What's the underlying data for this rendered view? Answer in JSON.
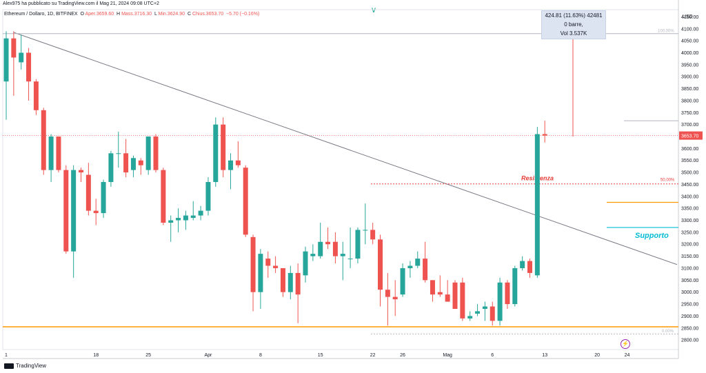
{
  "header": {
    "published": "Alex975 ha pubblicato su TradingView.com il Mag 21, 2024 09:08 UTC+2"
  },
  "legend": {
    "symbol": "Ethereum / Dollaro, 1D, BITFINEX",
    "o_label": "O",
    "open": "Aper.3659.60",
    "h_label": "H",
    "high": "Mass.3716.30",
    "l_label": "L",
    "low": "Min.3624.90",
    "c_label": "C",
    "close": "Chius.3653.70",
    "change": "−5.70 (−0.16%)"
  },
  "top_marker": "V",
  "currency": "USD",
  "measure": {
    "line1": "424.81 (11.63%) 42481",
    "line2": "0 barre,",
    "line3": "Vol 3.537K"
  },
  "annotations": {
    "resistance": "Resistenza",
    "support": "Supporto",
    "fib_100": "100.00%",
    "fib_50": "50.00%",
    "fib_0": "0.00%"
  },
  "price_badge": "3653.70",
  "brand": "TradingView",
  "colors": {
    "up": "#26a69a",
    "down": "#ef5350",
    "orange": "#ff9800",
    "trend": "#787b86",
    "resistance": "#e53935",
    "support": "#00bcd4",
    "measure_arrow": "#ef5350"
  },
  "chart_data": {
    "type": "candlestick",
    "y_axis_ticks": [
      4150,
      4100,
      4050,
      4000,
      3950,
      3900,
      3850,
      3800,
      3750,
      3700,
      3650,
      3600,
      3550,
      3500,
      3450,
      3400,
      3350,
      3300,
      3250,
      3200,
      3150,
      3100,
      3050,
      3000,
      2950,
      2900,
      2850,
      2800
    ],
    "ylim": [
      2760,
      4180
    ],
    "x_axis_ticks": [
      "1",
      "18",
      "25",
      "Apr",
      "8",
      "15",
      "22",
      "26",
      "Mag",
      "6",
      "13",
      "20",
      "24"
    ],
    "candles": [
      {
        "o": 3880,
        "h": 4090,
        "l": 3720,
        "c": 4060
      },
      {
        "o": 4060,
        "h": 4090,
        "l": 3820,
        "c": 3980
      },
      {
        "o": 3960,
        "h": 4075,
        "l": 3930,
        "c": 4000
      },
      {
        "o": 4000,
        "h": 4020,
        "l": 3800,
        "c": 3880
      },
      {
        "o": 3880,
        "h": 3890,
        "l": 3740,
        "c": 3760
      },
      {
        "o": 3760,
        "h": 3770,
        "l": 3490,
        "c": 3510
      },
      {
        "o": 3510,
        "h": 3660,
        "l": 3460,
        "c": 3650
      },
      {
        "o": 3650,
        "h": 3650,
        "l": 3500,
        "c": 3510
      },
      {
        "o": 3510,
        "h": 3530,
        "l": 3160,
        "c": 3170
      },
      {
        "o": 3170,
        "h": 3530,
        "l": 3060,
        "c": 3510
      },
      {
        "o": 3510,
        "h": 3520,
        "l": 3460,
        "c": 3500
      },
      {
        "o": 3490,
        "h": 3540,
        "l": 3320,
        "c": 3340
      },
      {
        "o": 3340,
        "h": 3390,
        "l": 3280,
        "c": 3330
      },
      {
        "o": 3330,
        "h": 3470,
        "l": 3310,
        "c": 3460
      },
      {
        "o": 3460,
        "h": 3590,
        "l": 3440,
        "c": 3580
      },
      {
        "o": 3580,
        "h": 3670,
        "l": 3520,
        "c": 3580
      },
      {
        "o": 3580,
        "h": 3640,
        "l": 3480,
        "c": 3500
      },
      {
        "o": 3510,
        "h": 3570,
        "l": 3480,
        "c": 3560
      },
      {
        "o": 3550,
        "h": 3560,
        "l": 3490,
        "c": 3530
      },
      {
        "o": 3510,
        "h": 3650,
        "l": 3490,
        "c": 3650
      },
      {
        "o": 3650,
        "h": 3660,
        "l": 3500,
        "c": 3510
      },
      {
        "o": 3510,
        "h": 3520,
        "l": 3280,
        "c": 3290
      },
      {
        "o": 3290,
        "h": 3320,
        "l": 3210,
        "c": 3300
      },
      {
        "o": 3300,
        "h": 3350,
        "l": 3250,
        "c": 3310
      },
      {
        "o": 3300,
        "h": 3340,
        "l": 3260,
        "c": 3320
      },
      {
        "o": 3310,
        "h": 3380,
        "l": 3300,
        "c": 3320
      },
      {
        "o": 3320,
        "h": 3360,
        "l": 3300,
        "c": 3340
      },
      {
        "o": 3340,
        "h": 3480,
        "l": 3320,
        "c": 3460
      },
      {
        "o": 3460,
        "h": 3730,
        "l": 3440,
        "c": 3700
      },
      {
        "o": 3700,
        "h": 3730,
        "l": 3480,
        "c": 3510
      },
      {
        "o": 3510,
        "h": 3580,
        "l": 3430,
        "c": 3550
      },
      {
        "o": 3550,
        "h": 3630,
        "l": 3520,
        "c": 3530
      },
      {
        "o": 3520,
        "h": 3530,
        "l": 3230,
        "c": 3240
      },
      {
        "o": 3230,
        "h": 3240,
        "l": 2920,
        "c": 3000
      },
      {
        "o": 3000,
        "h": 3180,
        "l": 2930,
        "c": 3160
      },
      {
        "o": 3140,
        "h": 3170,
        "l": 3060,
        "c": 3110
      },
      {
        "o": 3110,
        "h": 3150,
        "l": 3080,
        "c": 3100
      },
      {
        "o": 3100,
        "h": 3100,
        "l": 2980,
        "c": 3000
      },
      {
        "o": 3000,
        "h": 3110,
        "l": 2970,
        "c": 3080
      },
      {
        "o": 3080,
        "h": 3120,
        "l": 2870,
        "c": 2990
      },
      {
        "o": 3070,
        "h": 3190,
        "l": 3040,
        "c": 3170
      },
      {
        "o": 3150,
        "h": 3200,
        "l": 3130,
        "c": 3160
      },
      {
        "o": 3150,
        "h": 3290,
        "l": 3140,
        "c": 3210
      },
      {
        "o": 3210,
        "h": 3270,
        "l": 3180,
        "c": 3200
      },
      {
        "o": 3210,
        "h": 3250,
        "l": 3120,
        "c": 3150
      },
      {
        "o": 3150,
        "h": 3210,
        "l": 3050,
        "c": 3160
      },
      {
        "o": 3140,
        "h": 3270,
        "l": 3100,
        "c": 3140
      },
      {
        "o": 3140,
        "h": 3270,
        "l": 3120,
        "c": 3260
      },
      {
        "o": 3260,
        "h": 3370,
        "l": 3200,
        "c": 3260
      },
      {
        "o": 3260,
        "h": 3290,
        "l": 3200,
        "c": 3220
      },
      {
        "o": 3220,
        "h": 3240,
        "l": 2940,
        "c": 3010
      },
      {
        "o": 3010,
        "h": 3080,
        "l": 2860,
        "c": 2980
      },
      {
        "o": 2980,
        "h": 3050,
        "l": 2900,
        "c": 2970
      },
      {
        "o": 2990,
        "h": 3120,
        "l": 2980,
        "c": 3100
      },
      {
        "o": 3100,
        "h": 3130,
        "l": 3060,
        "c": 3110
      },
      {
        "o": 3110,
        "h": 3170,
        "l": 3100,
        "c": 3140
      },
      {
        "o": 3140,
        "h": 3210,
        "l": 3040,
        "c": 3050
      },
      {
        "o": 3050,
        "h": 3050,
        "l": 2960,
        "c": 2990
      },
      {
        "o": 3000,
        "h": 3070,
        "l": 2980,
        "c": 2990
      },
      {
        "o": 2990,
        "h": 3050,
        "l": 2960,
        "c": 2960
      },
      {
        "o": 3040,
        "h": 3050,
        "l": 2930,
        "c": 2930
      },
      {
        "o": 3040,
        "h": 3060,
        "l": 2880,
        "c": 2890
      },
      {
        "o": 2890,
        "h": 2920,
        "l": 2880,
        "c": 2900
      },
      {
        "o": 2910,
        "h": 2950,
        "l": 2900,
        "c": 2920
      },
      {
        "o": 2930,
        "h": 2960,
        "l": 2880,
        "c": 2940
      },
      {
        "o": 2940,
        "h": 2960,
        "l": 2860,
        "c": 2880
      },
      {
        "o": 2880,
        "h": 3060,
        "l": 2860,
        "c": 3040
      },
      {
        "o": 3040,
        "h": 3050,
        "l": 2930,
        "c": 2950
      },
      {
        "o": 2950,
        "h": 3110,
        "l": 2940,
        "c": 3100
      },
      {
        "o": 3100,
        "h": 3150,
        "l": 3090,
        "c": 3130
      },
      {
        "o": 3130,
        "h": 3140,
        "l": 3060,
        "c": 3080
      },
      {
        "o": 3070,
        "h": 3690,
        "l": 3060,
        "c": 3660
      },
      {
        "o": 3660,
        "h": 3716,
        "l": 3625,
        "c": 3654
      }
    ]
  }
}
